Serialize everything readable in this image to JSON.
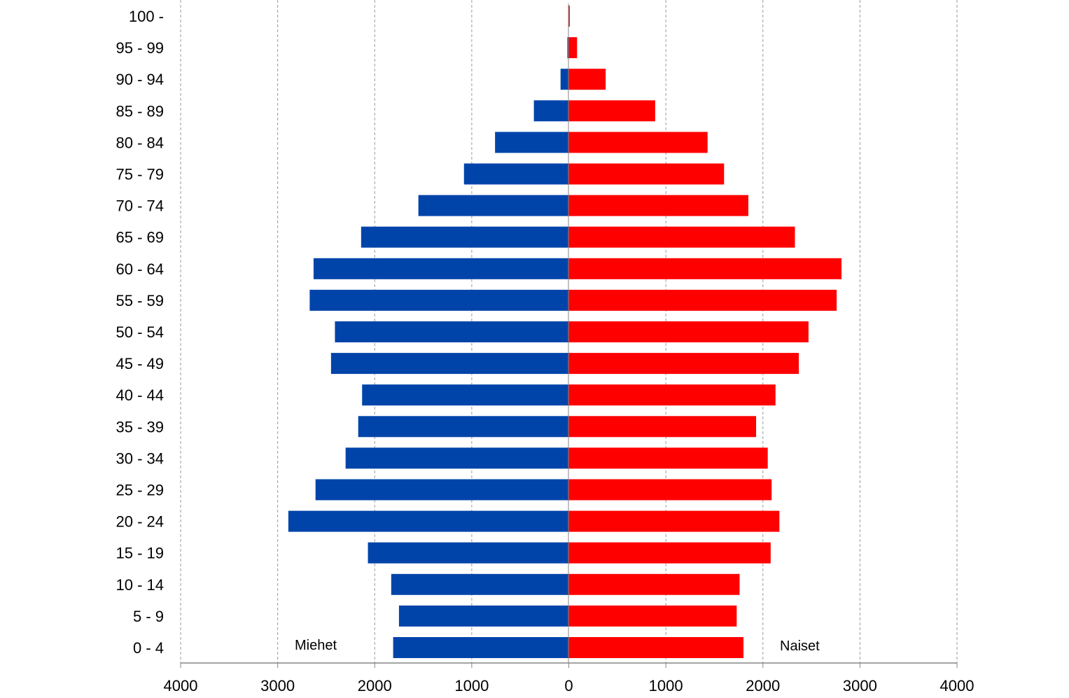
{
  "chart_data": {
    "type": "bar",
    "orientation": "horizontal",
    "categories": [
      "100 -",
      "95 - 99",
      "90 - 94",
      "85 - 89",
      "80 - 84",
      "75 - 79",
      "70 - 74",
      "65 - 69",
      "60 - 64",
      "55 - 59",
      "50 - 54",
      "45 - 49",
      "40 - 44",
      "35 - 39",
      "30 - 34",
      "25 - 29",
      "20 - 24",
      "15 - 19",
      "10 - 14",
      "5 - 9",
      "0 - 4"
    ],
    "series": [
      {
        "name": "Miehet",
        "color": "#0044aa",
        "values": [
          0,
          15,
          85,
          360,
          760,
          1080,
          1550,
          2140,
          2630,
          2670,
          2410,
          2450,
          2130,
          2170,
          2300,
          2610,
          2890,
          2070,
          1830,
          1750,
          1810
        ]
      },
      {
        "name": "Naiset",
        "color": "#ff0000",
        "values": [
          10,
          85,
          380,
          890,
          1430,
          1600,
          1850,
          2330,
          2810,
          2760,
          2470,
          2370,
          2130,
          1930,
          2050,
          2090,
          2170,
          2080,
          1760,
          1730,
          1800
        ]
      }
    ],
    "x_ticks": [
      "4000",
      "3000",
      "2000",
      "1000",
      "0",
      "1000",
      "2000",
      "3000",
      "4000"
    ],
    "xlim": [
      -4000,
      4000
    ],
    "grid": "vertical-dashed",
    "legend": "inline-bottom"
  }
}
